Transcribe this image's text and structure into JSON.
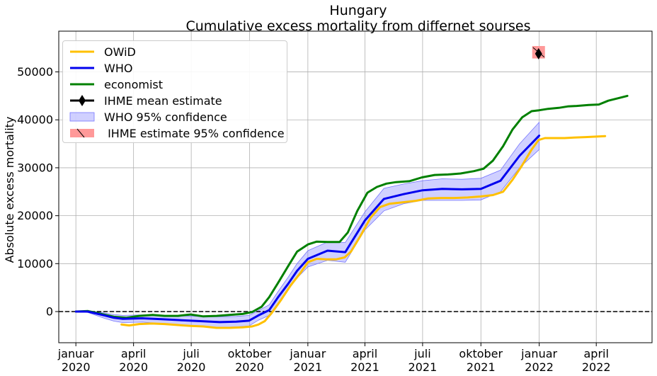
{
  "chart_data": {
    "type": "line",
    "title": "Hungary",
    "subtitle": "Cumulative excess mortality from differnet sourses",
    "xlabel": "",
    "ylabel": "Absolute excess mortality",
    "x_is_date": true,
    "xlim": [
      "2019-12-05",
      "2022-06-28"
    ],
    "ylim": [
      -6500,
      58500
    ],
    "y_ticks": [
      0,
      10000,
      20000,
      30000,
      40000,
      50000
    ],
    "x_ticks": [
      {
        "date": "2020-01-01",
        "line1": "januar",
        "line2": "2020"
      },
      {
        "date": "2020-04-01",
        "line1": "april",
        "line2": "2020"
      },
      {
        "date": "2020-07-01",
        "line1": "juli",
        "line2": "2020"
      },
      {
        "date": "2020-10-01",
        "line1": "oktober",
        "line2": "2020"
      },
      {
        "date": "2021-01-01",
        "line1": "januar",
        "line2": "2021"
      },
      {
        "date": "2021-04-01",
        "line1": "april",
        "line2": "2021"
      },
      {
        "date": "2021-07-01",
        "line1": "juli",
        "line2": "2021"
      },
      {
        "date": "2021-10-01",
        "line1": "oktober",
        "line2": "2021"
      },
      {
        "date": "2022-01-01",
        "line1": "januar",
        "line2": "2022"
      },
      {
        "date": "2022-04-01",
        "line1": "april",
        "line2": "2022"
      }
    ],
    "grid": true,
    "reference_line": {
      "y": 0,
      "style": "dashed",
      "color": "#000000"
    },
    "legend_position": "upper-left",
    "series": [
      {
        "name": "OWiD",
        "color": "#ffc000",
        "x": [
          "2020-03-13",
          "2020-03-25",
          "2020-04-10",
          "2020-04-30",
          "2020-05-20",
          "2020-06-10",
          "2020-06-30",
          "2020-07-20",
          "2020-08-10",
          "2020-08-30",
          "2020-09-20",
          "2020-10-05",
          "2020-10-15",
          "2020-10-25",
          "2020-11-05",
          "2020-11-20",
          "2020-12-05",
          "2020-12-20",
          "2021-01-01",
          "2021-01-15",
          "2021-01-30",
          "2021-02-15",
          "2021-02-28",
          "2021-03-10",
          "2021-03-25",
          "2021-04-10",
          "2021-04-25",
          "2021-05-10",
          "2021-05-30",
          "2021-06-20",
          "2021-07-10",
          "2021-07-30",
          "2021-08-20",
          "2021-09-10",
          "2021-09-30",
          "2021-10-20",
          "2021-11-05",
          "2021-11-20",
          "2021-12-05",
          "2021-12-20",
          "2021-12-31",
          "2022-01-10",
          "2022-01-25",
          "2022-02-10",
          "2022-02-25",
          "2022-03-15",
          "2022-04-01",
          "2022-04-15"
        ],
        "values": [
          -2700,
          -2900,
          -2600,
          -2500,
          -2600,
          -2800,
          -3000,
          -3100,
          -3400,
          -3400,
          -3300,
          -3100,
          -2700,
          -2000,
          -300,
          2500,
          5500,
          8000,
          10300,
          11000,
          10900,
          10900,
          11300,
          12500,
          15800,
          19600,
          21800,
          22500,
          22800,
          23100,
          23600,
          23700,
          23700,
          23800,
          24000,
          24300,
          25000,
          27500,
          30500,
          33800,
          35800,
          36200,
          36200,
          36200,
          36300,
          36400,
          36500,
          36600
        ]
      },
      {
        "name": "WHO",
        "color": "#0000ee",
        "x": [
          "2020-01-01",
          "2020-01-20",
          "2020-02-15",
          "2020-03-01",
          "2020-03-15",
          "2020-04-15",
          "2020-05-15",
          "2020-06-15",
          "2020-07-15",
          "2020-08-15",
          "2020-09-10",
          "2020-09-30",
          "2020-10-15",
          "2020-11-01",
          "2020-11-15",
          "2020-12-01",
          "2020-12-15",
          "2021-01-01",
          "2021-02-01",
          "2021-03-01",
          "2021-04-01",
          "2021-05-01",
          "2021-06-01",
          "2021-07-01",
          "2021-08-01",
          "2021-09-01",
          "2021-10-01",
          "2021-11-01",
          "2021-12-01",
          "2022-01-01"
        ],
        "values": [
          0,
          0,
          -800,
          -1300,
          -1500,
          -1400,
          -1600,
          -1800,
          -2000,
          -2200,
          -2100,
          -1900,
          -800,
          300,
          3000,
          5800,
          8500,
          11000,
          12700,
          12400,
          19000,
          23500,
          24500,
          25300,
          25600,
          25500,
          25600,
          27300,
          32500,
          36700
        ]
      },
      {
        "name": "economist",
        "color": "#008000",
        "x": [
          "2020-01-01",
          "2020-01-20",
          "2020-02-10",
          "2020-03-01",
          "2020-03-20",
          "2020-04-10",
          "2020-05-01",
          "2020-05-20",
          "2020-06-10",
          "2020-06-30",
          "2020-07-20",
          "2020-08-10",
          "2020-08-30",
          "2020-09-20",
          "2020-10-05",
          "2020-10-20",
          "2020-11-01",
          "2020-11-15",
          "2020-12-01",
          "2020-12-15",
          "2021-01-01",
          "2021-01-15",
          "2021-02-01",
          "2021-02-20",
          "2021-03-05",
          "2021-03-20",
          "2021-04-05",
          "2021-04-20",
          "2021-05-05",
          "2021-05-20",
          "2021-06-10",
          "2021-06-30",
          "2021-07-20",
          "2021-08-10",
          "2021-08-30",
          "2021-09-20",
          "2021-10-05",
          "2021-10-20",
          "2021-11-05",
          "2021-11-20",
          "2021-12-05",
          "2021-12-20",
          "2022-01-01",
          "2022-01-15",
          "2022-02-01",
          "2022-02-15",
          "2022-03-01",
          "2022-03-20",
          "2022-04-05",
          "2022-04-20",
          "2022-05-05",
          "2022-05-20"
        ],
        "values": [
          0,
          100,
          -500,
          -1100,
          -1300,
          -900,
          -700,
          -900,
          -900,
          -600,
          -1000,
          -900,
          -700,
          -500,
          -100,
          1000,
          3000,
          6000,
          9500,
          12500,
          14000,
          14600,
          14500,
          14500,
          16500,
          21000,
          24800,
          26000,
          26700,
          27000,
          27200,
          28000,
          28500,
          28600,
          28800,
          29300,
          29800,
          31500,
          34500,
          38000,
          40500,
          41800,
          42000,
          42300,
          42500,
          42800,
          42900,
          43100,
          43200,
          44000,
          44500,
          45000
        ]
      }
    ],
    "who_95_confidence": {
      "name": "WHO 95% confidence",
      "color": "#7777ff",
      "x": [
        "2020-01-01",
        "2020-01-20",
        "2020-02-15",
        "2020-03-01",
        "2020-03-15",
        "2020-04-15",
        "2020-05-15",
        "2020-06-15",
        "2020-07-15",
        "2020-08-15",
        "2020-09-10",
        "2020-09-30",
        "2020-10-15",
        "2020-11-01",
        "2020-11-15",
        "2020-12-01",
        "2020-12-15",
        "2021-01-01",
        "2021-02-01",
        "2021-03-01",
        "2021-04-01",
        "2021-05-01",
        "2021-06-01",
        "2021-07-01",
        "2021-08-01",
        "2021-09-01",
        "2021-10-01",
        "2021-11-01",
        "2021-12-01",
        "2022-01-01"
      ],
      "lower": [
        0,
        -200,
        -1400,
        -2000,
        -2300,
        -2200,
        -2500,
        -2800,
        -3100,
        -3300,
        -3200,
        -3000,
        -1800,
        -800,
        1800,
        4500,
        7000,
        9300,
        10700,
        10300,
        17000,
        21000,
        22500,
        23200,
        23200,
        23200,
        23300,
        25000,
        30000,
        33800
      ],
      "upper": [
        0,
        200,
        -300,
        -600,
        -800,
        -700,
        -800,
        -900,
        -1000,
        -1100,
        -1000,
        -800,
        200,
        1400,
        4200,
        7200,
        10000,
        12700,
        14500,
        14400,
        20800,
        25700,
        26600,
        27300,
        27700,
        27600,
        27800,
        29500,
        35000,
        39500
      ]
    },
    "ihme": {
      "mean_label": "IHME mean estimate",
      "confidence_label": " IHME estimate 95% confidence",
      "date": "2021-12-31",
      "mean": 53800,
      "lower": 52800,
      "upper": 55400,
      "marker_color": "#000000",
      "box_color": "#ff9999"
    }
  }
}
